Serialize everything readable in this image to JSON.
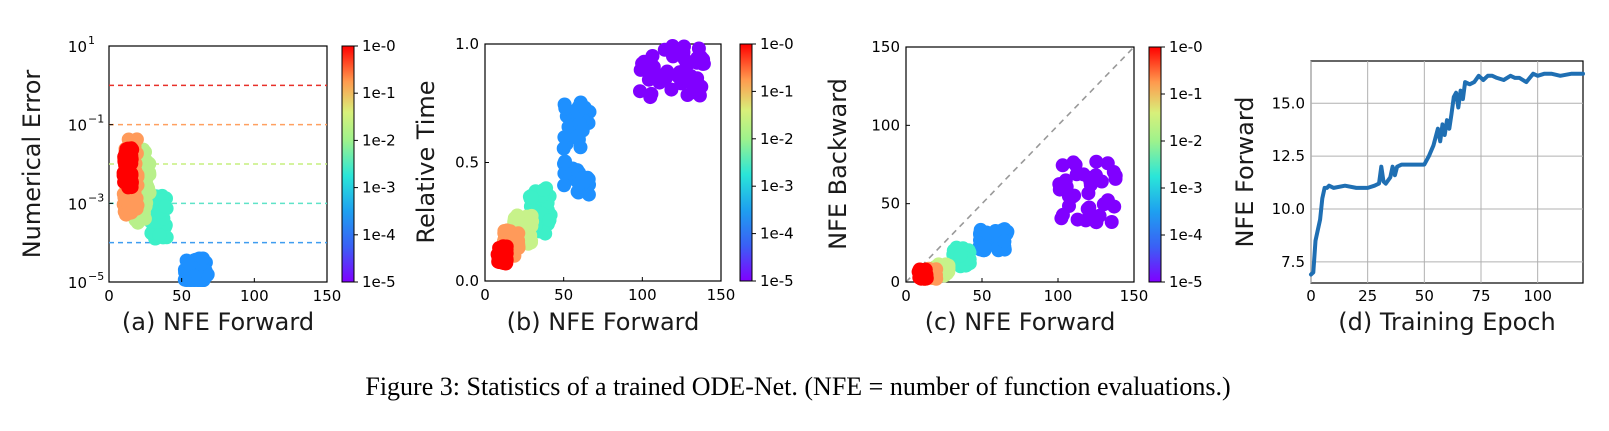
{
  "caption": "Figure 3: Statistics of a trained ODE-Net. (NFE = number of function evaluations.)",
  "colorbar": {
    "labels": [
      "1e-0",
      "1e-1",
      "1e-2",
      "1e-3",
      "1e-4",
      "1e-5"
    ],
    "colors": [
      "#ff0000",
      "#ff8a4a",
      "#c7f28a",
      "#3df0c8",
      "#1e90ff",
      "#8000ff"
    ]
  },
  "chart_data": [
    {
      "type": "scatter",
      "panel": "a",
      "title": "",
      "xlabel": "(a) NFE Forward",
      "ylabel": "Numerical Error",
      "xlim": [
        0,
        150
      ],
      "ylim_log10": [
        -5,
        1
      ],
      "xticks": [
        "0",
        "50",
        "100",
        "150"
      ],
      "yticks": [
        {
          "value": -5,
          "base": "10",
          "exp": "−5"
        },
        {
          "value": -3,
          "base": "10",
          "exp": "−3"
        },
        {
          "value": -1,
          "base": "10",
          "exp": "−1"
        },
        {
          "value": 1,
          "base": "10",
          "exp": "1"
        }
      ],
      "tolerance_lines_log10": [
        {
          "y": 0,
          "color": "#e8302a"
        },
        {
          "y": -1,
          "color": "#ffa060"
        },
        {
          "y": -2,
          "color": "#c5ef7e"
        },
        {
          "y": -3,
          "color": "#5fe3c8"
        },
        {
          "y": -4,
          "color": "#3f9df0"
        }
      ],
      "clusters": [
        {
          "tol": "1e-4",
          "color": "#1e90ff",
          "x": [
            52,
            68
          ],
          "y_log10": [
            -5.2,
            -4.4
          ]
        },
        {
          "tol": "1e-3",
          "color": "#3df0c8",
          "x": [
            28,
            40
          ],
          "y_log10": [
            -3.9,
            -2.8
          ]
        },
        {
          "tol": "1e-2",
          "color": "#b8f08a",
          "x": [
            16,
            28
          ],
          "y_log10": [
            -3.5,
            -1.6
          ]
        },
        {
          "tol": "1e-1",
          "color": "#ff9a5a",
          "x": [
            10,
            20
          ],
          "y_log10": [
            -3.3,
            -1.3
          ]
        },
        {
          "tol": "1e-0",
          "color": "#ff0000",
          "x": [
            10,
            16
          ],
          "y_log10": [
            -2.6,
            -1.6
          ]
        }
      ]
    },
    {
      "type": "scatter",
      "panel": "b",
      "title": "",
      "xlabel": "(b) NFE Forward",
      "ylabel": "Relative Time",
      "xlim": [
        0,
        150
      ],
      "ylim": [
        0,
        1
      ],
      "xticks": [
        "0",
        "50",
        "100",
        "150"
      ],
      "yticks": [
        "0.0",
        "0.5",
        "1.0"
      ],
      "clusters": [
        {
          "tol": "1e-5",
          "color": "#8000ff",
          "x": [
            95,
            140
          ],
          "y": [
            0.77,
            1.0
          ]
        },
        {
          "tol": "1e-4",
          "color": "#1e90ff",
          "x": [
            50,
            68
          ],
          "y": [
            0.36,
            0.78
          ]
        },
        {
          "tol": "1e-3",
          "color": "#3df0c8",
          "x": [
            28,
            42
          ],
          "y": [
            0.2,
            0.4
          ]
        },
        {
          "tol": "1e-2",
          "color": "#c7f28a",
          "x": [
            18,
            30
          ],
          "y": [
            0.15,
            0.28
          ]
        },
        {
          "tol": "1e-1",
          "color": "#ff9a5a",
          "x": [
            12,
            22
          ],
          "y": [
            0.1,
            0.22
          ]
        },
        {
          "tol": "1e-0",
          "color": "#ff0000",
          "x": [
            8,
            14
          ],
          "y": [
            0.07,
            0.15
          ]
        }
      ]
    },
    {
      "type": "scatter",
      "panel": "c",
      "title": "",
      "xlabel": "(c) NFE Forward",
      "ylabel": "NFE Backward",
      "xlim": [
        0,
        150
      ],
      "ylim": [
        0,
        150
      ],
      "xticks": [
        "0",
        "50",
        "100",
        "150"
      ],
      "yticks": [
        "0",
        "50",
        "100",
        "150"
      ],
      "reference_line": "y = x",
      "clusters": [
        {
          "tol": "1e-5",
          "color": "#8000ff",
          "x": [
            100,
            140
          ],
          "y": [
            38,
            78
          ]
        },
        {
          "tol": "1e-4",
          "color": "#1e90ff",
          "x": [
            48,
            68
          ],
          "y": [
            20,
            34
          ]
        },
        {
          "tol": "1e-3",
          "color": "#3df0c8",
          "x": [
            30,
            42
          ],
          "y": [
            10,
            22
          ]
        },
        {
          "tol": "1e-2",
          "color": "#c7f28a",
          "x": [
            18,
            28
          ],
          "y": [
            4,
            12
          ]
        },
        {
          "tol": "1e-1",
          "color": "#ff9a5a",
          "x": [
            12,
            20
          ],
          "y": [
            2,
            9
          ]
        },
        {
          "tol": "1e-0",
          "color": "#ff0000",
          "x": [
            8,
            14
          ],
          "y": [
            2,
            8
          ]
        }
      ]
    },
    {
      "type": "line",
      "panel": "d",
      "title": "",
      "xlabel": "(d) Training Epoch",
      "ylabel": "NFE Forward",
      "xlim": [
        0,
        120
      ],
      "ylim": [
        6.5,
        17
      ],
      "grid": true,
      "xticks": [
        "0",
        "25",
        "50",
        "75",
        "100"
      ],
      "yticks": [
        "7.5",
        "10.0",
        "12.5",
        "15.0"
      ],
      "series": [
        {
          "name": "NFE Forward",
          "color": "#1f6fb3",
          "x": [
            0,
            1,
            2,
            3,
            4,
            5,
            6,
            7,
            8,
            10,
            15,
            20,
            25,
            28,
            30,
            31,
            32,
            33,
            35,
            36,
            37,
            38,
            40,
            45,
            50,
            52,
            54,
            56,
            57,
            58,
            59,
            60,
            61,
            62,
            63,
            64,
            65,
            66,
            67,
            68,
            70,
            72,
            74,
            76,
            78,
            80,
            82,
            85,
            88,
            90,
            92,
            95,
            98,
            100,
            103,
            106,
            110,
            115,
            120
          ],
          "y": [
            6.9,
            7.0,
            8.5,
            9.0,
            9.5,
            10.5,
            11.0,
            11.0,
            11.1,
            11.0,
            11.1,
            11.0,
            11.0,
            11.1,
            11.2,
            12.0,
            11.3,
            11.2,
            11.5,
            12.0,
            11.6,
            12.0,
            12.1,
            12.1,
            12.1,
            12.5,
            13.0,
            13.8,
            13.2,
            14.0,
            13.5,
            14.2,
            13.8,
            14.5,
            15.3,
            15.5,
            14.8,
            15.6,
            15.2,
            16.0,
            15.9,
            16.0,
            16.3,
            16.1,
            16.3,
            16.3,
            16.2,
            16.1,
            16.3,
            16.2,
            16.2,
            16.0,
            16.4,
            16.3,
            16.4,
            16.4,
            16.3,
            16.4,
            16.4
          ]
        }
      ]
    }
  ]
}
